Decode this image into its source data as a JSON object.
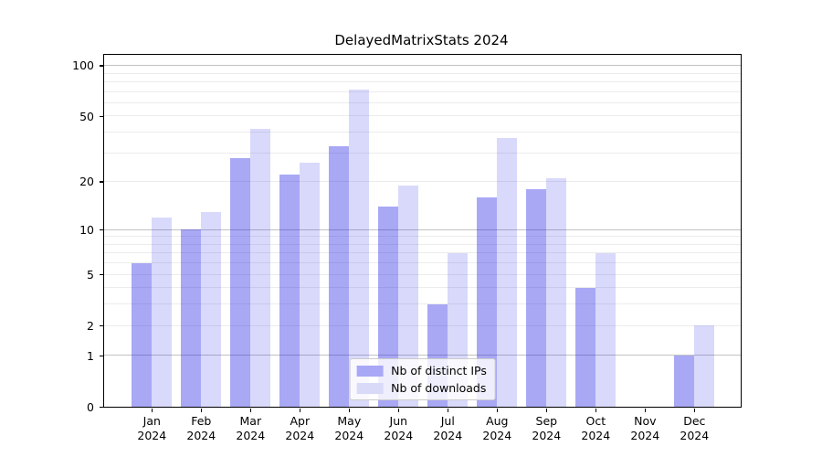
{
  "figure": {
    "background": "#ffffff"
  },
  "chart_data": {
    "type": "bar",
    "title": "DelayedMatrixStats 2024",
    "categories": [
      "Jan",
      "Feb",
      "Mar",
      "Apr",
      "May",
      "Jun",
      "Jul",
      "Aug",
      "Sep",
      "Oct",
      "Nov",
      "Dec"
    ],
    "category_year": "2024",
    "series": [
      {
        "name": "Nb of distinct IPs",
        "color_solid": "#a8a8f6",
        "color_rgba": "rgba(30,30,230,0.39)",
        "values": [
          6,
          10,
          28,
          22,
          33,
          14,
          3,
          16,
          18,
          4,
          0,
          1
        ]
      },
      {
        "name": "Nb of downloads",
        "color_solid": "#d9d9f8",
        "color_rgba": "rgba(30,30,230,0.17)",
        "values": [
          12,
          13,
          42,
          26,
          72,
          19,
          7,
          37,
          21,
          7,
          0,
          2
        ]
      }
    ],
    "xlabel": "",
    "ylabel": "",
    "yscale": "log1p",
    "ylim": [
      0,
      115
    ],
    "yticks_labeled": [
      0,
      1,
      2,
      5,
      10,
      20,
      50,
      100
    ],
    "yticks_major": [
      1,
      10,
      100
    ],
    "yticks_minor": [
      2,
      3,
      4,
      5,
      6,
      7,
      8,
      9,
      20,
      30,
      40,
      50,
      60,
      70,
      80,
      90
    ],
    "grid": true,
    "legend_position": "lower center",
    "colors": {
      "grid_major": "#c2c2c2",
      "grid_minor": "#ececec",
      "spine": "#000000",
      "text": "#000000",
      "legend_border": "#cccccc"
    }
  }
}
